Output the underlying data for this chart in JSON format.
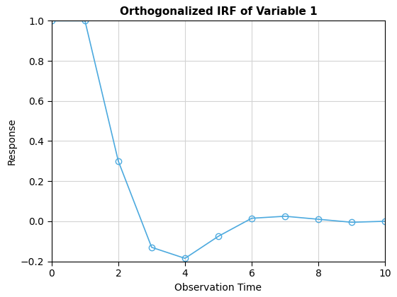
{
  "x": [
    0,
    1,
    2,
    3,
    4,
    5,
    6,
    7,
    8,
    9,
    10
  ],
  "y": [
    1.0,
    1.0,
    0.3,
    -0.13,
    -0.185,
    -0.075,
    0.015,
    0.025,
    0.01,
    -0.005,
    0.0
  ],
  "title": "Orthogonalized IRF of Variable 1",
  "xlabel": "Observation Time",
  "ylabel": "Response",
  "line_color": "#4DAADF",
  "marker": "o",
  "marker_facecolor": "none",
  "xlim": [
    0,
    10
  ],
  "ylim": [
    -0.2,
    1.0
  ],
  "xticks": [
    0,
    2,
    4,
    6,
    8,
    10
  ],
  "yticks": [
    -0.2,
    0.0,
    0.2,
    0.4,
    0.6,
    0.8,
    1.0
  ],
  "grid": true,
  "background_color": "#ffffff",
  "title_fontsize": 11,
  "label_fontsize": 10,
  "tick_fontsize": 10
}
